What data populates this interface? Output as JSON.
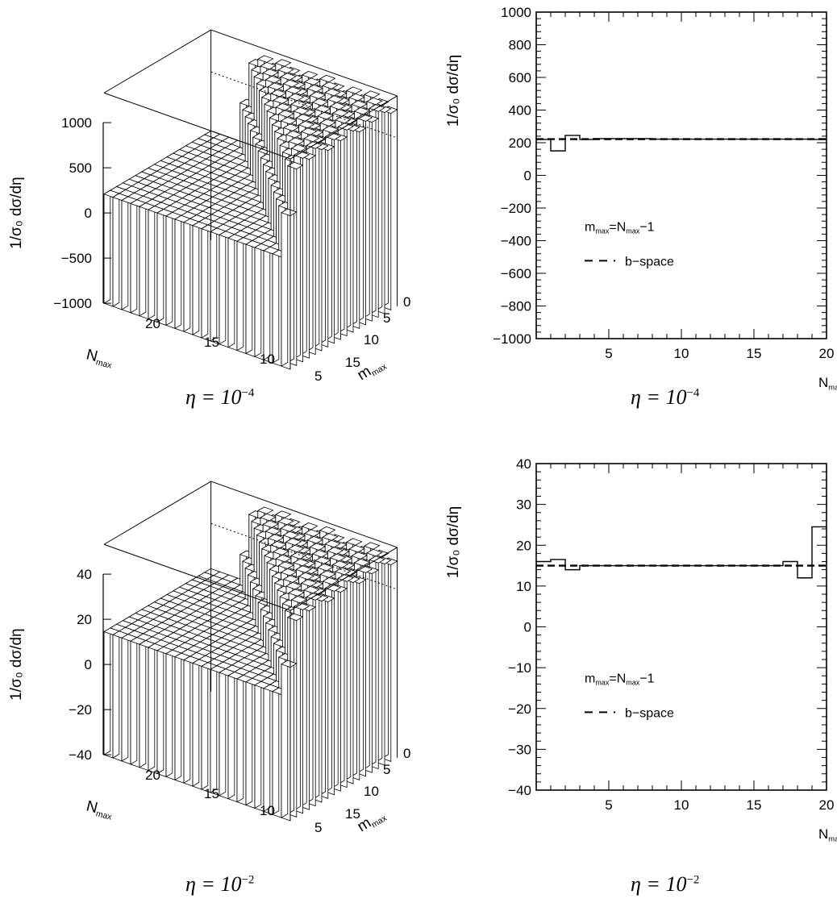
{
  "chart_data": [
    {
      "type": "bar3d",
      "zlabel": "1/σ₀ dσ/dη",
      "xlabel_main": "N",
      "xlabel_sub": "max",
      "ylabel_main": "m",
      "ylabel_sub": "max",
      "caption": {
        "prefix": "η = 10",
        "exp": "−4"
      },
      "z_ticks": [
        "1000",
        "500",
        "0",
        "−500",
        "−1000"
      ],
      "n_ticks": [
        "20",
        "15",
        "10",
        "5"
      ],
      "m_ticks": [
        "0",
        "5",
        "10",
        "15"
      ],
      "zlim": [
        -1000,
        1000
      ],
      "front_level": 220,
      "back_level": 1300
    },
    {
      "type": "line",
      "xlabel_main": "N",
      "xlabel_sub": "max",
      "ylabel": "1/σ₀ dσ/dη",
      "caption": {
        "prefix": "η = 10",
        "exp": "−4"
      },
      "xlim": [
        0,
        20
      ],
      "ylim": [
        -1000,
        1000
      ],
      "x_ticks": [
        5,
        10,
        15,
        20
      ],
      "y_ticks": [
        1000,
        800,
        600,
        400,
        200,
        0,
        -200,
        -400,
        -600,
        -800,
        -1000
      ],
      "y_tick_labels": [
        "1000",
        "800",
        "600",
        "400",
        "200",
        "0",
        "−200",
        "−400",
        "−600",
        "−800",
        "−1000"
      ],
      "legend": {
        "series1_main": "m",
        "series1_sub": "max",
        "series1_eq": "=N",
        "series1_sub2": "max",
        "series1_tail": "−1",
        "series2": "b−space"
      },
      "series": [
        {
          "name": "m_max=N_max−1",
          "style": "solid",
          "x": [
            1,
            2,
            3,
            4,
            5,
            6,
            7,
            8,
            9,
            10,
            11,
            12,
            13,
            14,
            15,
            16,
            17,
            18,
            19,
            20
          ],
          "values": [
            220,
            150,
            245,
            220,
            225,
            225,
            225,
            225,
            222,
            222,
            222,
            222,
            222,
            222,
            222,
            222,
            222,
            222,
            222,
            220
          ]
        },
        {
          "name": "b-space",
          "style": "dashed",
          "constant": 222
        }
      ]
    },
    {
      "type": "bar3d",
      "zlabel": "1/σ₀ dσ/dη",
      "xlabel_main": "N",
      "xlabel_sub": "max",
      "ylabel_main": "m",
      "ylabel_sub": "max",
      "caption": {
        "prefix": "η = 10",
        "exp": "−2"
      },
      "z_ticks": [
        "40",
        "20",
        "0",
        "−20",
        "−40"
      ],
      "n_ticks": [
        "20",
        "15",
        "10",
        "5"
      ],
      "m_ticks": [
        "0",
        "5",
        "10",
        "15"
      ],
      "zlim": [
        -40,
        40
      ],
      "front_level": 15,
      "back_level": 52
    },
    {
      "type": "line",
      "xlabel_main": "N",
      "xlabel_sub": "max",
      "ylabel": "1/σ₀ dσ/dη",
      "caption": {
        "prefix": "η = 10",
        "exp": "−2"
      },
      "xlim": [
        0,
        20
      ],
      "ylim": [
        -40,
        40
      ],
      "x_ticks": [
        5,
        10,
        15,
        20
      ],
      "y_ticks": [
        40,
        30,
        20,
        10,
        0,
        -10,
        -20,
        -30,
        -40
      ],
      "y_tick_labels": [
        "40",
        "30",
        "20",
        "10",
        "0",
        "−10",
        "−20",
        "−30",
        "−40"
      ],
      "legend": {
        "series1_main": "m",
        "series1_sub": "max",
        "series1_eq": "=N",
        "series1_sub2": "max",
        "series1_tail": "−1",
        "series2": "b−space"
      },
      "series": [
        {
          "name": "m_max=N_max−1",
          "style": "solid",
          "x": [
            1,
            2,
            3,
            4,
            5,
            6,
            7,
            8,
            9,
            10,
            11,
            12,
            13,
            14,
            15,
            16,
            17,
            18,
            19,
            20
          ],
          "values": [
            16,
            16.5,
            14,
            15,
            15,
            15,
            15,
            15,
            15,
            15,
            15,
            15,
            15,
            15,
            15,
            15,
            15,
            16,
            12,
            24.5
          ]
        },
        {
          "name": "b-space",
          "style": "dashed",
          "constant": 15
        }
      ]
    }
  ]
}
